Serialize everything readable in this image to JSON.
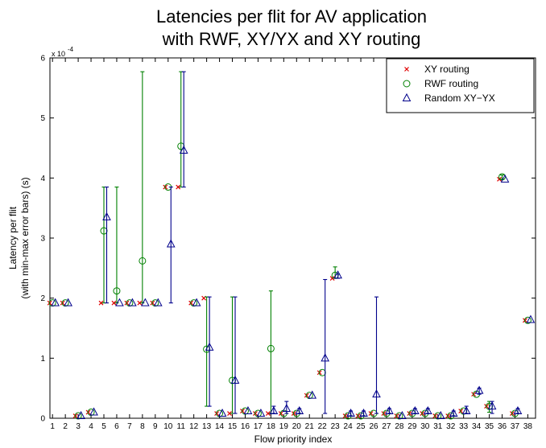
{
  "chart_data": {
    "type": "scatter",
    "title": [
      "Latencies per flit for AV application",
      "with RWF, XY/YX and XY routing"
    ],
    "xlabel": "Flow priority index",
    "ylabel": [
      "Latency per flit",
      "(with min-max error bars) (s)"
    ],
    "y_scale_label": "x 10",
    "y_scale_exponent": "-4",
    "y_scale_factor": 0.0001,
    "ylim": [
      0,
      6
    ],
    "yticks": [
      0,
      1,
      2,
      3,
      4,
      5,
      6
    ],
    "xlim": [
      0.8,
      38.6
    ],
    "categories": [
      1,
      2,
      3,
      4,
      5,
      6,
      7,
      8,
      9,
      10,
      11,
      12,
      13,
      14,
      15,
      16,
      17,
      18,
      19,
      20,
      21,
      22,
      23,
      24,
      25,
      26,
      27,
      28,
      29,
      30,
      31,
      32,
      33,
      34,
      35,
      36,
      37,
      38
    ],
    "grid": false,
    "legend_position": "top-right",
    "series": [
      {
        "name": "XY routing",
        "marker": "x",
        "color": "#e00000",
        "values": [
          1.92,
          1.92,
          0.04,
          0.1,
          1.92,
          1.92,
          1.92,
          1.92,
          1.92,
          3.85,
          3.85,
          1.92,
          2.0,
          0.08,
          0.08,
          0.12,
          0.08,
          0.08,
          0.08,
          0.08,
          0.38,
          0.76,
          2.33,
          0.04,
          0.04,
          0.08,
          0.08,
          0.04,
          0.08,
          0.08,
          0.04,
          0.04,
          0.12,
          0.4,
          0.2,
          3.98,
          0.08,
          1.63
        ],
        "min": null,
        "max": null
      },
      {
        "name": "RWF routing",
        "marker": "circle",
        "color": "#008000",
        "values": [
          1.92,
          1.92,
          0.04,
          0.1,
          3.12,
          2.12,
          1.92,
          2.62,
          1.92,
          3.85,
          4.53,
          1.92,
          1.15,
          0.08,
          0.63,
          0.12,
          0.08,
          1.16,
          0.08,
          0.08,
          0.38,
          0.76,
          2.38,
          0.04,
          0.04,
          0.08,
          0.08,
          0.04,
          0.08,
          0.08,
          0.04,
          0.04,
          0.12,
          0.4,
          0.2,
          4.02,
          0.08,
          1.63
        ],
        "min": [
          1.92,
          1.92,
          0.04,
          0.1,
          1.92,
          1.92,
          1.92,
          1.92,
          1.92,
          3.85,
          3.85,
          1.92,
          0.2,
          0.08,
          0.08,
          0.12,
          0.08,
          0.08,
          0.08,
          0.08,
          0.38,
          0.76,
          2.33,
          0.04,
          0.04,
          0.08,
          0.08,
          0.04,
          0.08,
          0.08,
          0.04,
          0.04,
          0.12,
          0.4,
          0.1,
          3.98,
          0.08,
          1.63
        ],
        "max": [
          1.92,
          1.92,
          0.04,
          0.1,
          3.85,
          3.85,
          1.92,
          5.77,
          1.92,
          3.85,
          5.77,
          1.92,
          2.02,
          0.08,
          2.02,
          0.12,
          0.08,
          2.12,
          0.08,
          0.08,
          0.38,
          0.76,
          2.52,
          0.04,
          0.04,
          0.08,
          0.08,
          0.04,
          0.08,
          0.08,
          0.04,
          0.04,
          0.12,
          0.4,
          0.28,
          4.05,
          0.08,
          1.63
        ]
      },
      {
        "name": "Random XY−YX",
        "marker": "triangle",
        "color": "#00008b",
        "values": [
          1.92,
          1.92,
          0.04,
          0.1,
          3.35,
          1.92,
          1.92,
          1.92,
          1.92,
          2.9,
          4.46,
          1.92,
          1.18,
          0.08,
          0.63,
          0.12,
          0.08,
          0.12,
          0.16,
          0.12,
          0.38,
          1.0,
          2.38,
          0.08,
          0.08,
          0.4,
          0.12,
          0.04,
          0.12,
          0.12,
          0.04,
          0.08,
          0.12,
          0.46,
          0.2,
          3.98,
          0.12,
          1.64
        ],
        "min": [
          1.92,
          1.92,
          0.04,
          0.1,
          1.92,
          1.92,
          1.92,
          1.92,
          1.92,
          1.92,
          3.85,
          1.92,
          0.2,
          0.08,
          0.08,
          0.12,
          0.08,
          0.08,
          0.08,
          0.08,
          0.38,
          0.08,
          2.33,
          0.04,
          0.04,
          0.08,
          0.08,
          0.04,
          0.08,
          0.08,
          0.04,
          0.04,
          0.08,
          0.4,
          0.08,
          3.98,
          0.08,
          1.63
        ],
        "max": [
          1.92,
          1.92,
          0.04,
          0.1,
          3.85,
          1.92,
          1.92,
          1.92,
          1.92,
          3.85,
          5.77,
          1.92,
          2.02,
          0.08,
          2.02,
          0.12,
          0.08,
          0.2,
          0.28,
          0.16,
          0.38,
          2.31,
          2.4,
          0.12,
          0.12,
          2.02,
          0.16,
          0.04,
          0.16,
          0.16,
          0.04,
          0.12,
          0.2,
          0.5,
          0.28,
          4.0,
          0.16,
          1.66
        ]
      }
    ]
  }
}
